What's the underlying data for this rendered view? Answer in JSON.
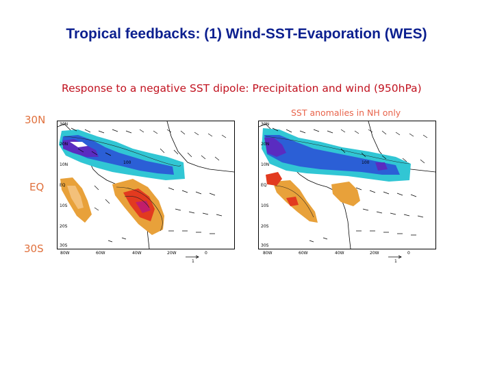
{
  "slide": {
    "title": "Tropical feedbacks: (1) Wind-SST-Evaporation (WES)",
    "subtitle": "Response to a negative SST dipole: Precipitation and wind (950hPa)",
    "right_panel_note": "SST anomalies in NH only",
    "latitude_labels": [
      "30N",
      "EQ",
      "30S"
    ]
  },
  "maps": {
    "lat_ticks": [
      "30N",
      "20N",
      "10N",
      "EQ",
      "10S",
      "20S",
      "30S"
    ],
    "lon_ticks": [
      "80W",
      "60W",
      "40W",
      "20W",
      "0"
    ],
    "vector_scale_label": "1",
    "contour_label": "100"
  },
  "colors": {
    "title": "#0b1f8f",
    "subtitle": "#c1121f",
    "note": "#e8634a",
    "lat_labels": "#e0703c",
    "cyan": "#31c6d4",
    "blue": "#2b5fd6",
    "purple": "#5a2cc0",
    "orange": "#e8a13a",
    "red": "#e23a1f",
    "magenta": "#c21d6b"
  }
}
